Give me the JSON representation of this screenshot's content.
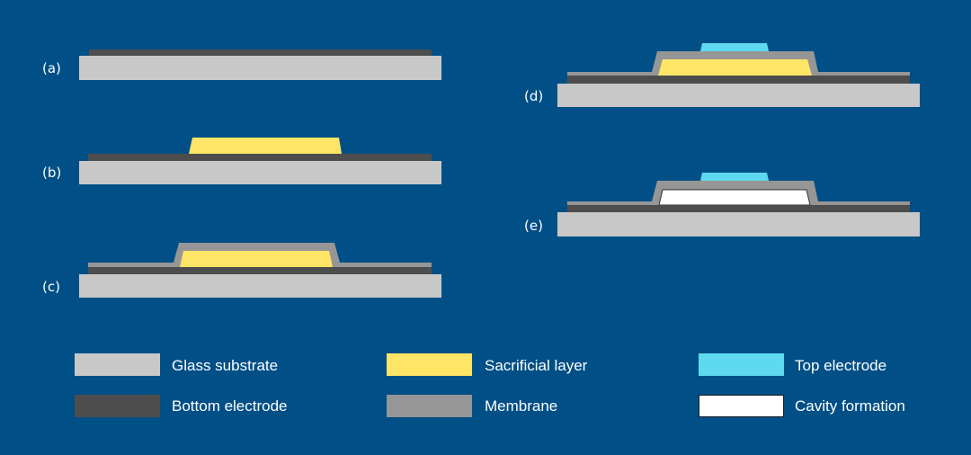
{
  "colors": {
    "background": "#004f86",
    "glass_substrate": "#c8c8c8",
    "bottom_electrode": "#4d4d4d",
    "membrane": "#969696",
    "sacrificial_layer": "#ffe566",
    "top_electrode": "#5fd9ef",
    "cavity_formation": "#ffffff"
  },
  "steps": [
    {
      "label": "(a)"
    },
    {
      "label": "(b)"
    },
    {
      "label": "(c)"
    },
    {
      "label": "(d)"
    },
    {
      "label": "(e)"
    }
  ],
  "legend": [
    {
      "key": "glass_substrate",
      "label": "Glass substrate"
    },
    {
      "key": "sacrificial_layer",
      "label": "Sacrificial layer"
    },
    {
      "key": "top_electrode",
      "label": "Top electrode"
    },
    {
      "key": "bottom_electrode",
      "label": "Bottom electrode"
    },
    {
      "key": "membrane",
      "label": "Membrane"
    },
    {
      "key": "cavity_formation",
      "label": "Cavity formation"
    }
  ]
}
